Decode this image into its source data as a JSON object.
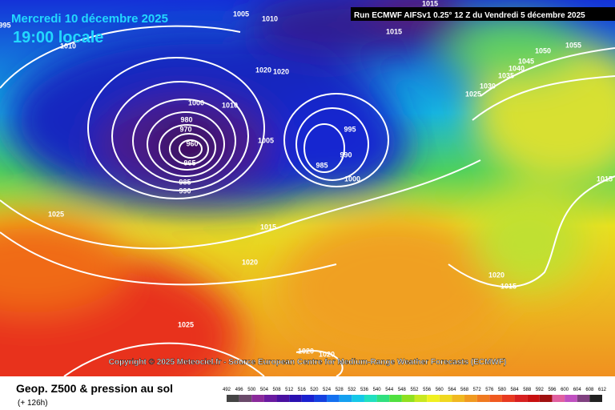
{
  "header": {
    "date": "Mercredi 10 décembre 2025",
    "time": "19:00 locale",
    "run": "Run ECMWF AIFSv1 0.25° 12 Z du Vendredi 5 décembre 2025"
  },
  "copyright": "Copyright © 2025 Meteociel.fr - Source European Centre for Medium-Range Weather Forecasts (ECMWF)",
  "footer": {
    "title": "Geop. Z500 & pression au sol",
    "lead": "(+ 126h)"
  },
  "legend": {
    "levels": [
      "492",
      "496",
      "500",
      "504",
      "508",
      "512",
      "516",
      "520",
      "524",
      "528",
      "532",
      "536",
      "540",
      "544",
      "548",
      "552",
      "556",
      "560",
      "564",
      "568",
      "572",
      "576",
      "580",
      "584",
      "588",
      "592",
      "596",
      "600",
      "604",
      "608",
      "612"
    ]
  },
  "isobar_labels": [
    "1015",
    "1005",
    "1010",
    "1015",
    "1010",
    "1020",
    "1020",
    "1050",
    "1055",
    "1045",
    "1040",
    "1035",
    "1030",
    "1025",
    "1000",
    "1010",
    "995",
    "980",
    "970",
    "960",
    "965",
    "1005",
    "990",
    "985",
    "985",
    "990",
    "1000",
    "1015",
    "1025",
    "1015",
    "1020",
    "1020",
    "1015",
    "1025",
    "1020",
    "1020",
    "995"
  ]
}
